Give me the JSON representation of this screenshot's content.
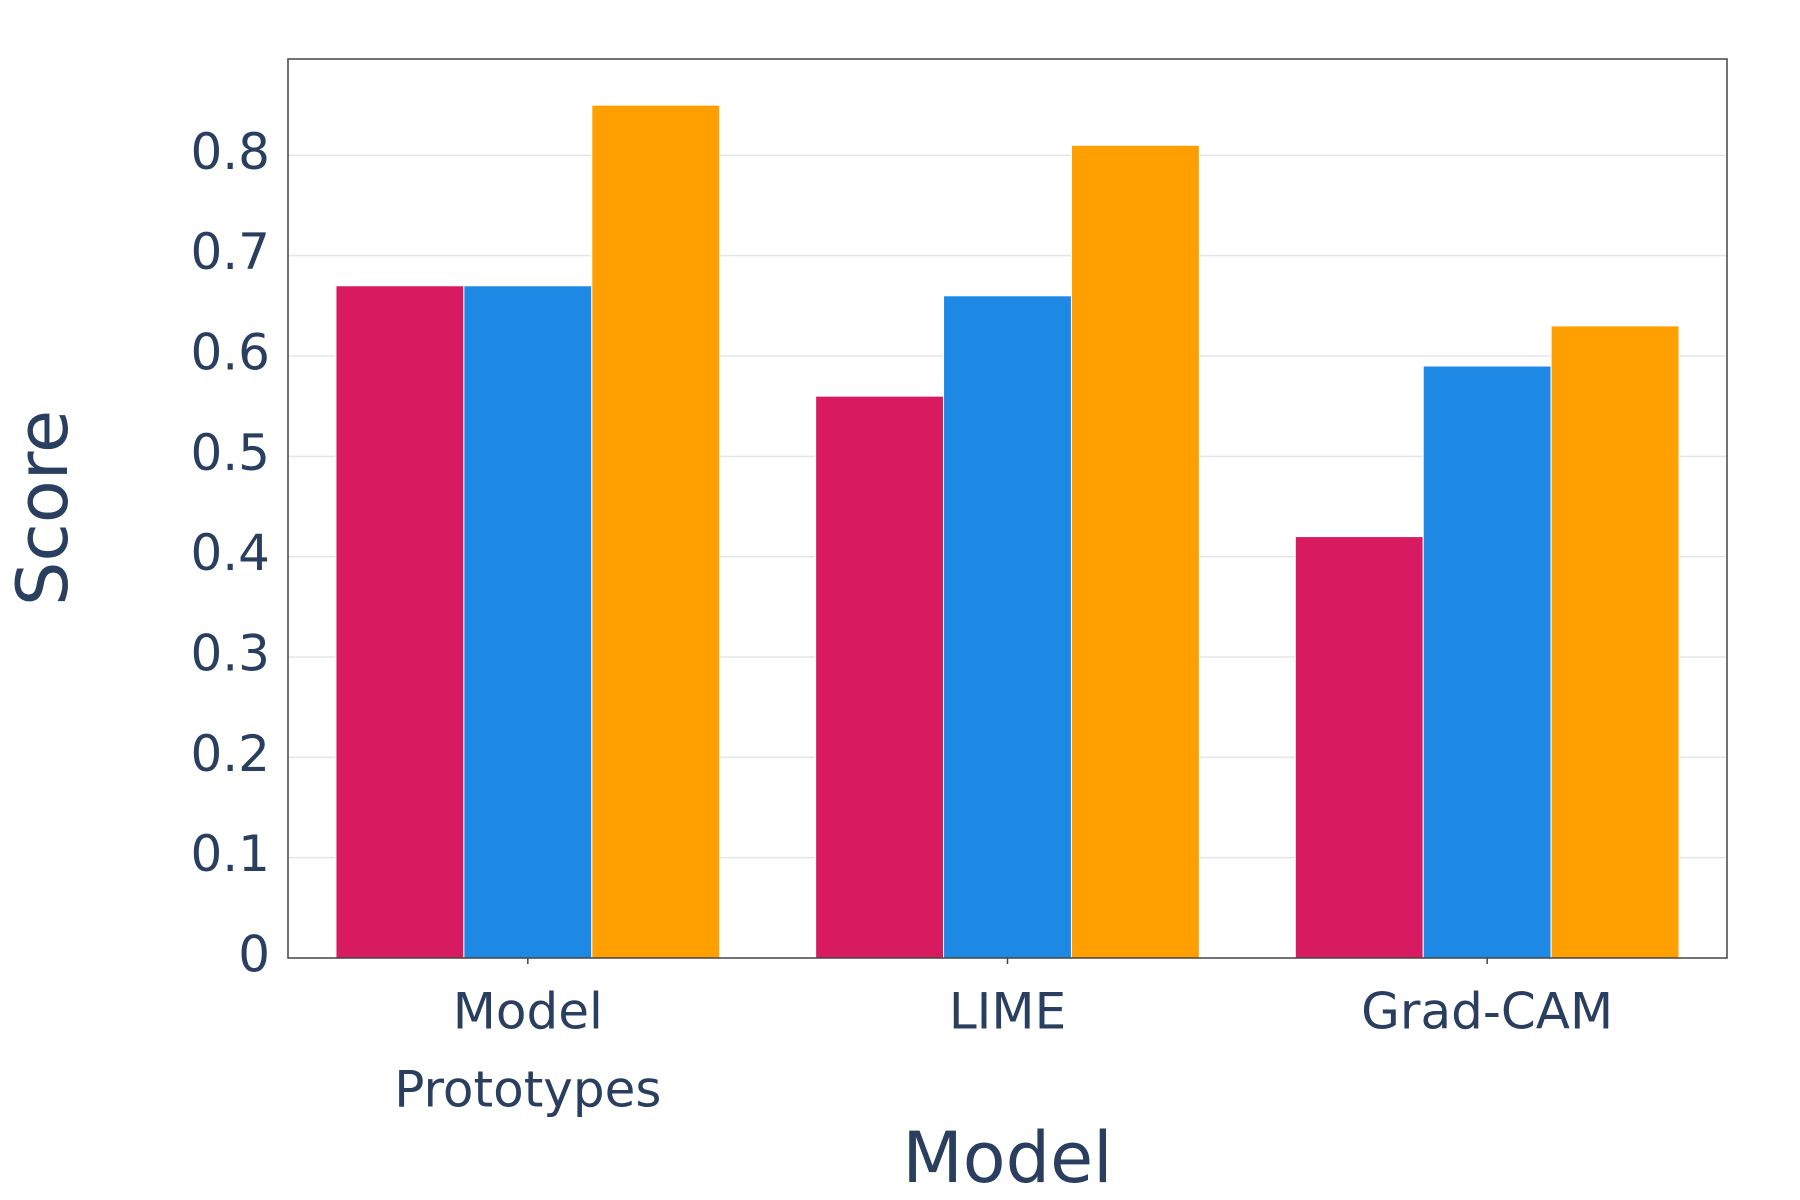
{
  "chart_data": {
    "type": "bar",
    "title": "",
    "xlabel": "Model",
    "ylabel": "Score",
    "categories": [
      [
        "Model",
        "Prototypes"
      ],
      [
        "LIME"
      ],
      [
        "Grad-CAM"
      ]
    ],
    "series": [
      {
        "name": "series-1",
        "color": "#d81b60",
        "values": [
          0.67,
          0.56,
          0.42
        ]
      },
      {
        "name": "series-2",
        "color": "#1e88e5",
        "values": [
          0.67,
          0.66,
          0.59
        ]
      },
      {
        "name": "series-3",
        "color": "#ffa000",
        "values": [
          0.85,
          0.81,
          0.63
        ]
      }
    ],
    "ylim": [
      0,
      0.896
    ],
    "yticks": [
      0,
      0.1,
      0.2,
      0.3,
      0.4,
      0.5,
      0.6,
      0.7,
      0.8
    ],
    "ytick_labels": [
      "0",
      "0.1",
      "0.2",
      "0.3",
      "0.4",
      "0.5",
      "0.6",
      "0.7",
      "0.8"
    ],
    "grid": true,
    "legend": "none",
    "colors": {
      "text": "#2a3f5f",
      "grid": "#e5e5e5",
      "axis": "#444444"
    }
  }
}
